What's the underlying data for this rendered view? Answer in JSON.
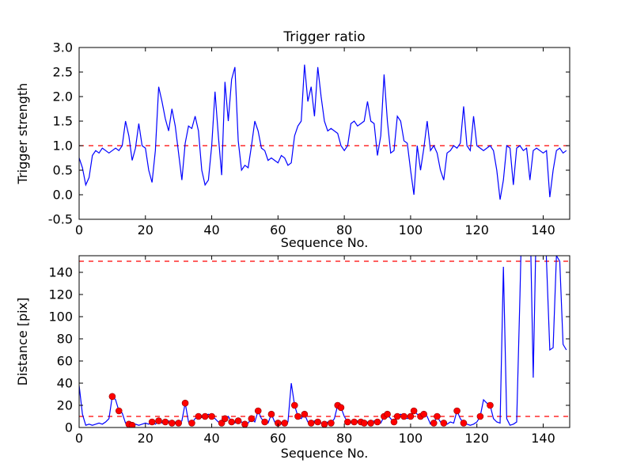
{
  "figure": {
    "background": "#ffffff",
    "line_color": "#0000ff",
    "threshold_color": "#ff0000",
    "marker_color": "#ff0000",
    "marker_edge_color": "#880000"
  },
  "chart_data": [
    {
      "type": "line",
      "title": "Trigger ratio",
      "xlabel": "Sequence No.",
      "ylabel": "Trigger strength",
      "xlim": [
        0,
        148
      ],
      "ylim": [
        -0.5,
        3.0
      ],
      "xticks": [
        0,
        20,
        40,
        60,
        80,
        100,
        120,
        140
      ],
      "xticklabels": [
        "0",
        "20",
        "40",
        "60",
        "80",
        "100",
        "120",
        "140"
      ],
      "yticks": [
        -0.5,
        0.0,
        0.5,
        1.0,
        1.5,
        2.0,
        2.5,
        3.0
      ],
      "yticklabels": [
        "-0.5",
        "0.0",
        "0.5",
        "1.0",
        "1.5",
        "2.0",
        "2.5",
        "3.0"
      ],
      "thresholds": [
        1.0
      ],
      "line_color": "#0000ff",
      "threshold_color": "#ff0000",
      "legend": "none",
      "grid": false,
      "values": [
        0.75,
        0.55,
        0.2,
        0.35,
        0.8,
        0.9,
        0.85,
        0.95,
        0.9,
        0.85,
        0.9,
        0.95,
        0.9,
        1.0,
        1.5,
        1.2,
        0.7,
        0.95,
        1.45,
        1.0,
        0.95,
        0.5,
        0.25,
        0.9,
        2.2,
        1.9,
        1.55,
        1.3,
        1.75,
        1.4,
        0.85,
        0.3,
        1.05,
        1.4,
        1.35,
        1.6,
        1.3,
        0.5,
        0.2,
        0.3,
        1.0,
        2.1,
        1.2,
        0.4,
        2.3,
        1.5,
        2.35,
        2.6,
        1.1,
        0.5,
        0.6,
        0.55,
        1.0,
        1.5,
        1.3,
        0.95,
        0.9,
        0.7,
        0.75,
        0.7,
        0.65,
        0.8,
        0.75,
        0.6,
        0.65,
        1.2,
        1.4,
        1.5,
        2.65,
        1.9,
        2.2,
        1.6,
        2.6,
        2.0,
        1.5,
        1.3,
        1.35,
        1.3,
        1.25,
        1.0,
        0.9,
        1.0,
        1.45,
        1.5,
        1.4,
        1.45,
        1.5,
        1.9,
        1.5,
        1.45,
        0.8,
        1.2,
        2.45,
        1.5,
        0.85,
        0.9,
        1.6,
        1.5,
        1.1,
        1.05,
        0.5,
        0.0,
        1.0,
        0.5,
        0.95,
        1.5,
        0.9,
        1.0,
        0.85,
        0.5,
        0.3,
        0.85,
        0.9,
        1.0,
        0.95,
        1.05,
        1.8,
        1.0,
        0.9,
        1.6,
        1.0,
        0.95,
        0.9,
        0.95,
        1.0,
        0.9,
        0.5,
        -0.1,
        0.3,
        1.0,
        0.95,
        0.2,
        0.95,
        1.0,
        0.9,
        0.95,
        0.3,
        0.9,
        0.95,
        0.9,
        0.85,
        0.9,
        -0.05,
        0.5,
        0.9,
        0.95,
        0.85,
        0.9
      ]
    },
    {
      "type": "line",
      "title": "",
      "xlabel": "Sequence No.",
      "ylabel": "Distance [pix]",
      "xlim": [
        0,
        148
      ],
      "ylim": [
        0,
        155
      ],
      "xticks": [
        0,
        20,
        40,
        60,
        80,
        100,
        120,
        140
      ],
      "xticklabels": [
        "0",
        "20",
        "40",
        "60",
        "80",
        "100",
        "120",
        "140"
      ],
      "yticks": [
        0,
        20,
        40,
        60,
        80,
        100,
        120,
        140
      ],
      "yticklabels": [
        "0",
        "20",
        "40",
        "60",
        "80",
        "100",
        "120",
        "140"
      ],
      "thresholds": [
        10,
        150
      ],
      "line_color": "#0000ff",
      "threshold_color": "#ff0000",
      "marker_color": "#ff0000",
      "marker_edge_color": "#880000",
      "legend": "none",
      "grid": false,
      "values": [
        38,
        12,
        2,
        3,
        2,
        3,
        4,
        3,
        5,
        8,
        28,
        25,
        15,
        13,
        4,
        3,
        2,
        3,
        2,
        3,
        4,
        3,
        5,
        3,
        6,
        4,
        5,
        6,
        4,
        5,
        4,
        6,
        22,
        5,
        4,
        8,
        10,
        9,
        10,
        12,
        10,
        8,
        5,
        4,
        8,
        10,
        5,
        4,
        6,
        5,
        3,
        4,
        8,
        5,
        15,
        8,
        5,
        4,
        12,
        5,
        4,
        3,
        4,
        5,
        40,
        20,
        10,
        8,
        12,
        5,
        4,
        6,
        5,
        4,
        3,
        5,
        4,
        8,
        20,
        18,
        10,
        5,
        4,
        5,
        6,
        5,
        4,
        5,
        4,
        6,
        5,
        4,
        10,
        12,
        8,
        5,
        10,
        12,
        10,
        8,
        10,
        15,
        12,
        10,
        12,
        10,
        3,
        4,
        10,
        5,
        4,
        3,
        5,
        4,
        15,
        8,
        4,
        3,
        2,
        3,
        5,
        10,
        25,
        22,
        20,
        8,
        5,
        4,
        145,
        8,
        2,
        3,
        5,
        120,
        250,
        260,
        200,
        45,
        200,
        260,
        250,
        150,
        70,
        72,
        155,
        150,
        75,
        70
      ],
      "marker_indices": [
        10,
        12,
        15,
        16,
        22,
        24,
        26,
        28,
        30,
        32,
        34,
        36,
        38,
        40,
        43,
        44,
        46,
        48,
        50,
        52,
        54,
        56,
        58,
        60,
        62,
        65,
        66,
        68,
        70,
        72,
        74,
        76,
        78,
        79,
        81,
        83,
        85,
        86,
        88,
        90,
        92,
        93,
        95,
        96,
        98,
        100,
        101,
        103,
        104,
        107,
        108,
        110,
        114,
        116,
        121,
        124
      ]
    }
  ]
}
